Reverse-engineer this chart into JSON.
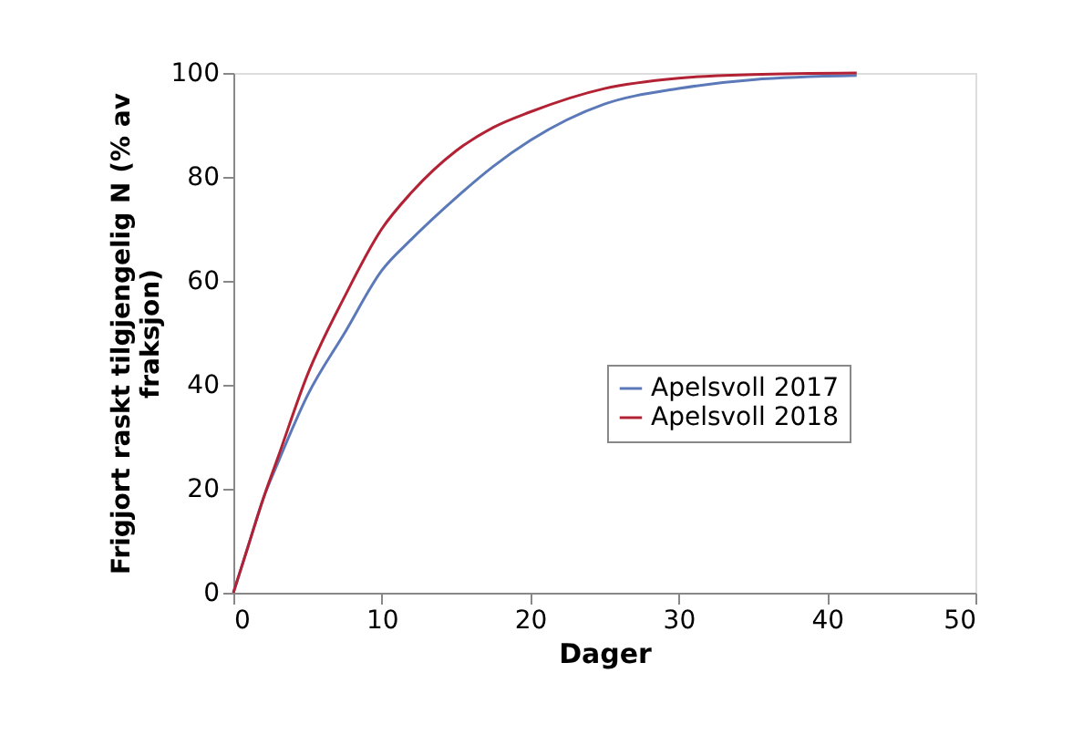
{
  "chart_data": {
    "type": "line",
    "xlabel": "Dager",
    "ylabel": "Frigjort raskt tilgjengelig N (% av fraksjon)",
    "xlim": [
      0,
      50
    ],
    "xticks": [
      0,
      10,
      20,
      30,
      40,
      50
    ],
    "ylim": [
      0,
      100
    ],
    "yticks": [
      0,
      20,
      40,
      60,
      80,
      100
    ],
    "grid": false,
    "legend": "right",
    "line_style": "solid",
    "marker": "none",
    "series": [
      {
        "name": "Apelsvoll 2017",
        "color": "#5b79b8",
        "x": [
          0,
          1,
          2,
          3,
          5,
          7.5,
          10,
          12,
          15,
          17.5,
          20,
          25,
          30,
          35,
          42
        ],
        "values": [
          0,
          9,
          18,
          25,
          38,
          50,
          62,
          68,
          76,
          82,
          87,
          94,
          97,
          98.7,
          99.5
        ]
      },
      {
        "name": "Apelsvoll 2018",
        "color": "#b22234",
        "x": [
          0,
          1,
          2,
          3,
          5,
          7.5,
          10,
          12,
          15,
          17.5,
          20,
          25,
          30,
          35,
          42
        ],
        "values": [
          0,
          9,
          18,
          26,
          42,
          57,
          70,
          77,
          85,
          89.5,
          92.5,
          97,
          99,
          99.7,
          100
        ]
      }
    ]
  }
}
